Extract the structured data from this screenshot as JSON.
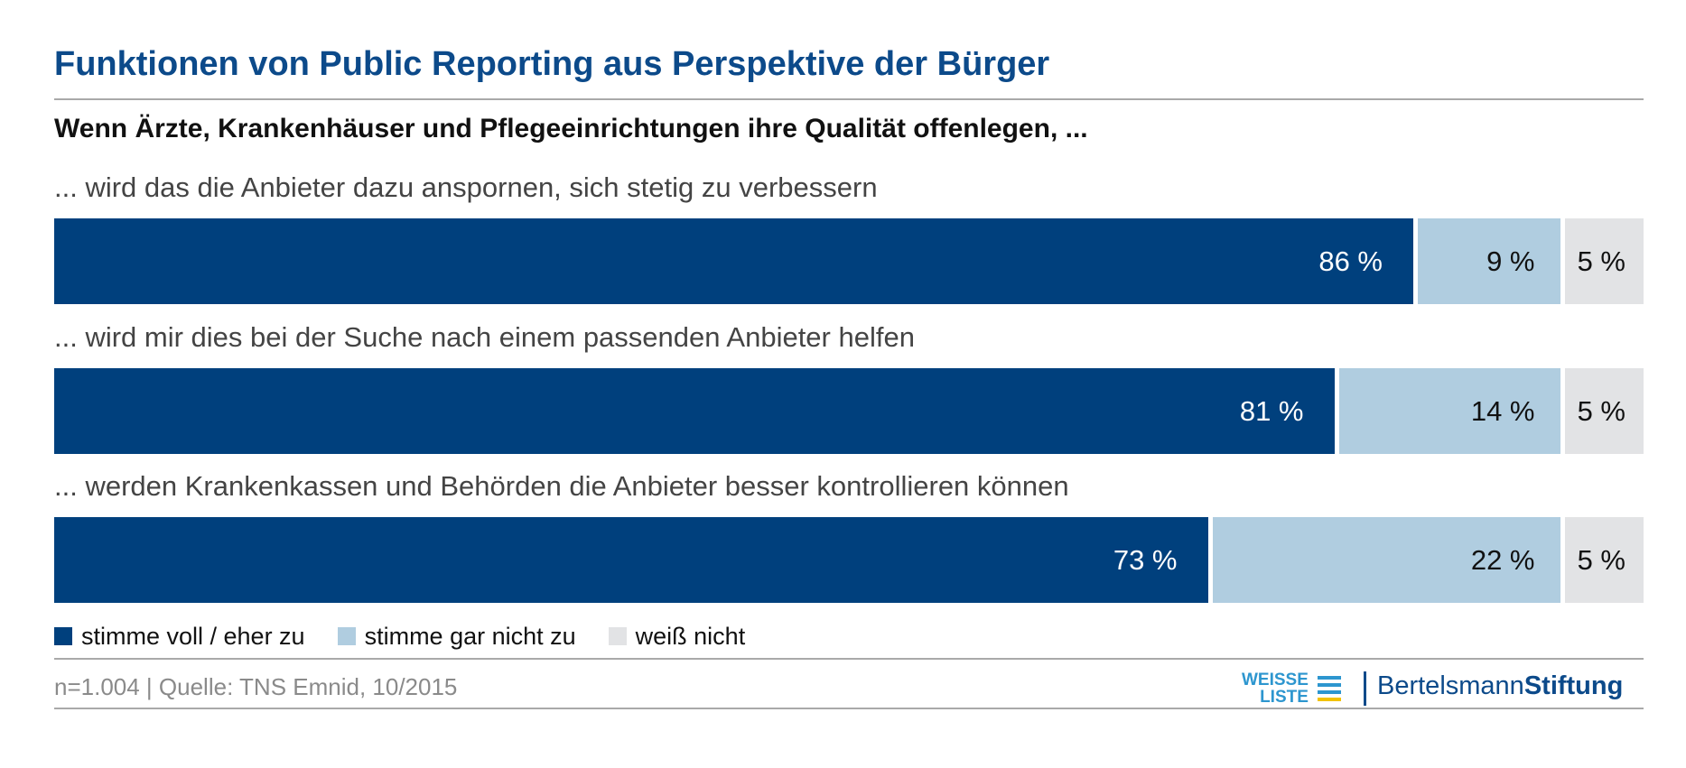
{
  "header": {
    "title": "Funktionen von Public Reporting aus Perspektive der Bürger",
    "subtitle": "Wenn Ärzte, Krankenhäuser und Pflegeeinrichtungen ihre Qualität offenlegen, ..."
  },
  "chart_data": {
    "type": "bar",
    "orientation": "horizontal",
    "stacked": true,
    "percent_stacked": true,
    "categories": [
      "... wird das die Anbieter dazu anspornen, sich stetig zu verbessern",
      "... wird mir dies bei der Suche nach einem passenden Anbieter helfen",
      "... werden Krankenkassen und Behörden die Anbieter besser kontrollieren können"
    ],
    "series": [
      {
        "name": "stimme voll / eher zu",
        "values": [
          86,
          81,
          73
        ],
        "labels": [
          "86 %",
          "81 %",
          "73 %"
        ],
        "color": "#00407d"
      },
      {
        "name": "stimme gar nicht zu",
        "values": [
          9,
          14,
          22
        ],
        "labels": [
          "9 %",
          "14 %",
          "22 %"
        ],
        "color": "#b0cde0"
      },
      {
        "name": "weiß nicht",
        "values": [
          5,
          5,
          5
        ],
        "labels": [
          "5 %",
          "5 %",
          "5 %"
        ],
        "color": "#e2e3e5"
      }
    ],
    "xlim": [
      0,
      100
    ],
    "grid": false,
    "legend_position": "bottom-left"
  },
  "footer": {
    "source": "n=1.004 | Quelle: TNS Emnid, 10/2015",
    "logo_weisse_line1": "WEISSE",
    "logo_weisse_line2": "LISTE",
    "logo_bs_regular": "Bertelsmann",
    "logo_bs_bold": "Stiftung",
    "colors": {
      "weisse_blue": "#2d96cf",
      "weisse_yellow": "#f2c200",
      "brand_blue": "#0c4a8a"
    }
  }
}
